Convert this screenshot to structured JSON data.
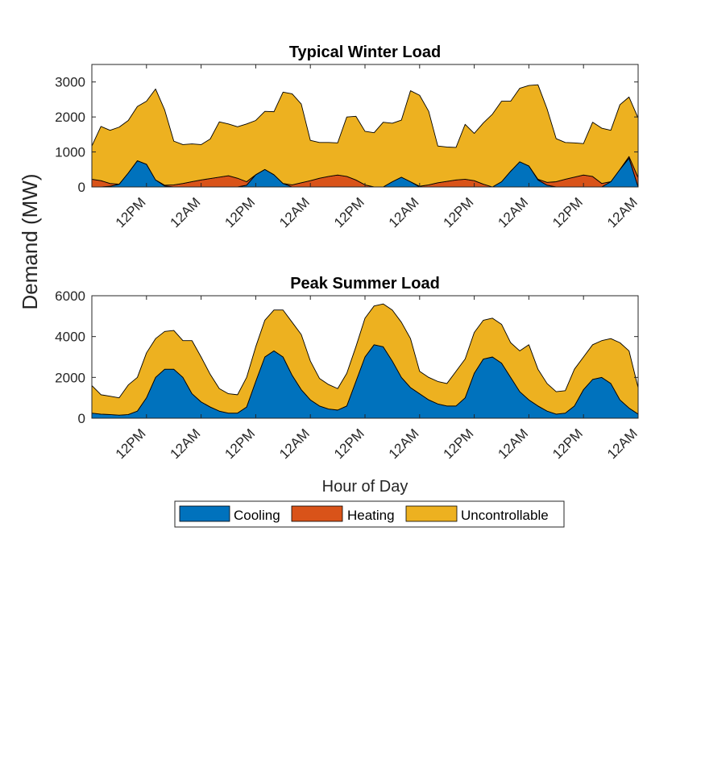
{
  "figure": {
    "ylabel": "Demand (MW)",
    "xlabel": "Hour of Day"
  },
  "legend": [
    {
      "label": "Cooling",
      "color": "#0072BD"
    },
    {
      "label": "Heating",
      "color": "#D95319"
    },
    {
      "label": "Uncontrollable",
      "color": "#EDB120"
    }
  ],
  "chart_data": [
    {
      "type": "area",
      "stacked": true,
      "title": "Typical Winter Load",
      "x_unit": "hour",
      "x_range": [
        0,
        120
      ],
      "ylim": [
        0,
        3500
      ],
      "yticks": [
        0,
        1000,
        2000,
        3000
      ],
      "xticks": [
        {
          "x": 12,
          "label": "12PM"
        },
        {
          "x": 24,
          "label": "12AM"
        },
        {
          "x": 36,
          "label": "12PM"
        },
        {
          "x": 48,
          "label": "12AM"
        },
        {
          "x": 60,
          "label": "12PM"
        },
        {
          "x": 72,
          "label": "12AM"
        },
        {
          "x": 84,
          "label": "12PM"
        },
        {
          "x": 96,
          "label": "12AM"
        },
        {
          "x": 108,
          "label": "12PM"
        },
        {
          "x": 120,
          "label": "12AM"
        }
      ],
      "x": [
        0,
        2,
        4,
        6,
        8,
        10,
        12,
        14,
        16,
        18,
        20,
        22,
        24,
        26,
        28,
        30,
        32,
        34,
        36,
        38,
        40,
        42,
        44,
        46,
        48,
        50,
        52,
        54,
        56,
        58,
        60,
        62,
        64,
        66,
        68,
        70,
        72,
        74,
        76,
        78,
        80,
        82,
        84,
        86,
        88,
        90,
        92,
        94,
        96,
        98,
        100,
        102,
        104,
        106,
        108,
        110,
        112,
        114,
        116,
        118,
        120
      ],
      "series": [
        {
          "name": "Cooling",
          "values": [
            0,
            0,
            20,
            80,
            400,
            750,
            650,
            200,
            30,
            0,
            0,
            0,
            0,
            0,
            0,
            0,
            0,
            50,
            350,
            500,
            350,
            100,
            0,
            0,
            0,
            0,
            0,
            0,
            0,
            0,
            0,
            0,
            0,
            150,
            280,
            150,
            0,
            0,
            0,
            0,
            0,
            0,
            0,
            0,
            0,
            150,
            450,
            720,
            600,
            200,
            50,
            0,
            0,
            0,
            0,
            0,
            0,
            150,
            500,
            820,
            0
          ]
        },
        {
          "name": "Heating",
          "values": [
            220,
            180,
            80,
            0,
            0,
            0,
            0,
            0,
            20,
            60,
            100,
            150,
            200,
            240,
            280,
            320,
            250,
            100,
            0,
            0,
            0,
            0,
            60,
            120,
            180,
            250,
            300,
            340,
            300,
            200,
            60,
            0,
            0,
            0,
            0,
            0,
            20,
            60,
            120,
            160,
            200,
            220,
            180,
            80,
            0,
            0,
            0,
            0,
            0,
            20,
            80,
            150,
            220,
            280,
            340,
            300,
            100,
            0,
            0,
            50,
            270
          ]
        },
        {
          "name": "Uncontrollable",
          "values": [
            950,
            1550,
            1520,
            1630,
            1500,
            1550,
            1800,
            2600,
            2150,
            1250,
            1110,
            1080,
            1010,
            1130,
            1580,
            1480,
            1470,
            1650,
            1550,
            1660,
            1800,
            2610,
            2600,
            2250,
            1150,
            1020,
            970,
            920,
            1700,
            1820,
            1530,
            1550,
            1850,
            1670,
            1630,
            2600,
            2600,
            2100,
            1050,
            980,
            930,
            1570,
            1350,
            1750,
            2080,
            2300,
            2000,
            2100,
            2300,
            2700,
            2100,
            1230,
            1050,
            980,
            900,
            1550,
            1580,
            1470,
            1850,
            1700,
            1700
          ]
        }
      ]
    },
    {
      "type": "area",
      "stacked": true,
      "title": "Peak Summer Load",
      "x_unit": "hour",
      "x_range": [
        0,
        120
      ],
      "ylim": [
        0,
        6000
      ],
      "yticks": [
        0,
        2000,
        4000,
        6000
      ],
      "xticks": [
        {
          "x": 12,
          "label": "12PM"
        },
        {
          "x": 24,
          "label": "12AM"
        },
        {
          "x": 36,
          "label": "12PM"
        },
        {
          "x": 48,
          "label": "12AM"
        },
        {
          "x": 60,
          "label": "12PM"
        },
        {
          "x": 72,
          "label": "12AM"
        },
        {
          "x": 84,
          "label": "12PM"
        },
        {
          "x": 96,
          "label": "12AM"
        },
        {
          "x": 108,
          "label": "12PM"
        },
        {
          "x": 120,
          "label": "12AM"
        }
      ],
      "x": [
        0,
        2,
        4,
        6,
        8,
        10,
        12,
        14,
        16,
        18,
        20,
        22,
        24,
        26,
        28,
        30,
        32,
        34,
        36,
        38,
        40,
        42,
        44,
        46,
        48,
        50,
        52,
        54,
        56,
        58,
        60,
        62,
        64,
        66,
        68,
        70,
        72,
        74,
        76,
        78,
        80,
        82,
        84,
        86,
        88,
        90,
        92,
        94,
        96,
        98,
        100,
        102,
        104,
        106,
        108,
        110,
        112,
        114,
        116,
        118,
        120
      ],
      "series": [
        {
          "name": "Cooling",
          "values": [
            250,
            200,
            180,
            150,
            180,
            350,
            1000,
            2000,
            2400,
            2400,
            2000,
            1200,
            800,
            550,
            350,
            250,
            250,
            550,
            1800,
            3000,
            3300,
            3000,
            2100,
            1400,
            900,
            600,
            450,
            400,
            600,
            1800,
            3000,
            3600,
            3500,
            2800,
            2000,
            1500,
            1200,
            900,
            700,
            600,
            600,
            1000,
            2200,
            2900,
            3000,
            2700,
            2000,
            1300,
            900,
            600,
            350,
            200,
            250,
            600,
            1400,
            1900,
            2000,
            1700,
            900,
            500,
            200
          ]
        },
        {
          "name": "Uncontrollable",
          "values": [
            1350,
            950,
            900,
            850,
            1450,
            1650,
            2200,
            1900,
            1850,
            1900,
            1800,
            2600,
            2200,
            1600,
            1100,
            950,
            900,
            1450,
            1700,
            1800,
            2000,
            2300,
            2600,
            2700,
            1900,
            1350,
            1200,
            1050,
            1600,
            1700,
            1900,
            1900,
            2100,
            2500,
            2700,
            2400,
            1100,
            1100,
            1100,
            1100,
            1700,
            1900,
            2000,
            1900,
            1900,
            1900,
            1700,
            2000,
            2700,
            1800,
            1350,
            1100,
            1100,
            1800,
            1600,
            1700,
            1800,
            2200,
            2800,
            2800,
            1300
          ]
        }
      ]
    }
  ]
}
